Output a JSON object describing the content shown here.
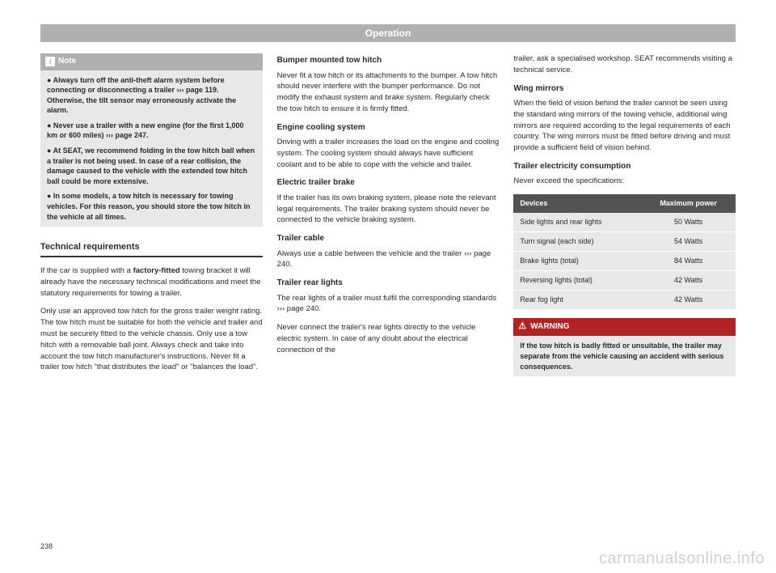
{
  "header": "Operation",
  "pageNumber": "238",
  "watermark": "carmanualsonline.info",
  "note": {
    "label": "Note",
    "bullets": [
      "● Always turn off the anti-theft alarm system before connecting or disconnecting a trailer ››› page 119. Otherwise, the tilt sensor may erroneously activate the alarm.",
      "● Never use a trailer with a new engine (for the first 1,000 km or 600 miles) ››› page 247.",
      "● At SEAT, we recommend folding in the tow hitch ball when a trailer is not being used. In case of a rear collision, the damage caused to the vehicle with the extended tow hitch ball could be more extensive.",
      "● In some models, a tow hitch is necessary for towing vehicles. For this reason, you should store the tow hitch in the vehicle at all times."
    ]
  },
  "col1": {
    "sectionHeading": "Technical requirements",
    "p1a": "If the car is supplied with a ",
    "p1b": "factory-fitted",
    "p1c": " towing bracket it will already have the necessary technical modifications and meet the statutory requirements for towing a trailer.",
    "p2": "Only use an approved tow hitch for the gross trailer weight rating. The tow hitch must be suitable for both the vehicle and trailer and must be securely fitted to the vehicle chassis. Only use a tow hitch with a removable ball joint. Always check and take into account the tow hitch manufacturer's instructions. Never fit a trailer tow hitch \"that distributes the load\" or \"balances the load\"."
  },
  "col2": {
    "h1": "Bumper mounted tow hitch",
    "p1": "Never fit a tow hitch or its attachments to the bumper. A tow hitch should never interfere with the bumper performance. Do not modify the exhaust system and brake system. Regularly check the tow hitch to ensure it is firmly fitted.",
    "h2": "Engine cooling system",
    "p2": "Driving with a trailer increases the load on the engine and cooling system. The cooling system should always have sufficient coolant and to be able to cope with the vehicle and trailer.",
    "h3": "Electric trailer brake",
    "p3": "If the trailer has its own braking system, please note the relevant legal requirements. The trailer braking system should never be connected to the vehicle braking system.",
    "h4": "Trailer cable",
    "p4": "Always use a cable between the vehicle and the trailer ››› page 240.",
    "h5": "Trailer rear lights",
    "p5": "The rear lights of a trailer must fulfil the corresponding standards ››› page 240.",
    "p6": "Never connect the trailer's rear lights directly to the vehicle electric system. In case of any doubt about the electrical connection of the"
  },
  "col3": {
    "p0": "trailer, ask a specialised workshop. SEAT recommends visiting a technical service.",
    "h1": "Wing mirrors",
    "p1": "When the field of vision behind the trailer cannot be seen using the standard wing mirrors of the towing vehicle, additional wing mirrors are required according to the legal requirements of each country. The wing mirrors must be fitted before driving and must provide a sufficient field of vision behind.",
    "h2": "Trailer electricity consumption",
    "p2": "Never exceed the specifications:",
    "table": {
      "headers": [
        "Devices",
        "Maximum power"
      ],
      "rows": [
        [
          "Side lights and rear lights",
          "50 Watts"
        ],
        [
          "Turn signal (each side)",
          "54 Watts"
        ],
        [
          "Brake lights (total)",
          "84 Watts"
        ],
        [
          "Reversing lights (total)",
          "42 Watts"
        ],
        [
          "Rear fog light",
          "42 Watts"
        ]
      ]
    },
    "warning": {
      "label": "WARNING",
      "body": "If the tow hitch is badly fitted or unsuitable, the trailer may separate from the vehicle causing an accident with serious consequences."
    }
  }
}
